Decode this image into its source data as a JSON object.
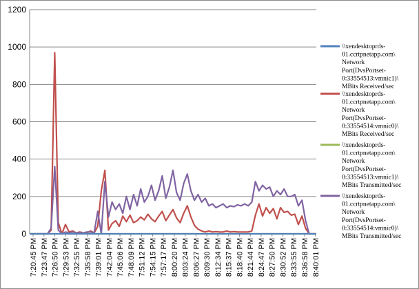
{
  "chart_data": {
    "type": "line",
    "title": "",
    "xlabel": "",
    "ylabel": "",
    "ylim": [
      0,
      1200
    ],
    "yticks": [
      0,
      200,
      400,
      600,
      800,
      1000,
      1200
    ],
    "grid": "horizontal",
    "legend_position": "right",
    "x_tick_labels": [
      "7:20:45 PM",
      "7:23:47 PM",
      "7:26:50 PM",
      "7:29:53 PM",
      "7:32:55 PM",
      "7:35:58 PM",
      "7:39:01 PM",
      "7:42:04 PM",
      "7:45:06 PM",
      "7:48:09 PM",
      "7:51:12 PM",
      "7:54:15 PM",
      "7:57:17 PM",
      "8:00:20 PM",
      "8:03:24 PM",
      "8:06:27 PM",
      "8:09:30 PM",
      "8:12:34 PM",
      "8:15:37 PM",
      "8:18:40 PM",
      "8:21:44 PM",
      "8:24:47 PM",
      "8:27:50 PM",
      "8:30:52 PM",
      "8:33:55 PM",
      "8:36:58 PM",
      "8:40:01 PM"
    ],
    "series": [
      {
        "name": "\\\\xendesktoprds-01.ccrtpnetapp.com\\Network Port(DvsPortset-0:33554513:vmnic1)\\MBits Received/sec",
        "color": "#4f81bd",
        "values": [
          0,
          0,
          0,
          0,
          0,
          0,
          0,
          0,
          0,
          0,
          0,
          0,
          0,
          0,
          0,
          0,
          0,
          0,
          0,
          0,
          0,
          0,
          0,
          0,
          0,
          0,
          0,
          0,
          0,
          0,
          0,
          0,
          0,
          0,
          0,
          0,
          0,
          0,
          0,
          0,
          0,
          0,
          0,
          0,
          0,
          0,
          0,
          0,
          0,
          0,
          0,
          0,
          0,
          0,
          0,
          0,
          0,
          0,
          0,
          0,
          0,
          0,
          0,
          0,
          0,
          0,
          0,
          0,
          0,
          0,
          0,
          0,
          0,
          0,
          0,
          0,
          0,
          0,
          0,
          0,
          0
        ]
      },
      {
        "name": "\\\\xendesktoprds-01.ccrtpnetapp.com\\Network Port(DvsPortset-0:33554514:vmnic0)\\MBits Received/sec",
        "color": "#c0504d",
        "values": [
          0,
          0,
          0,
          0,
          0,
          0,
          20,
          970,
          60,
          0,
          50,
          10,
          15,
          5,
          10,
          5,
          5,
          15,
          5,
          40,
          230,
          340,
          20,
          55,
          70,
          40,
          95,
          65,
          100,
          60,
          70,
          90,
          75,
          105,
          80,
          65,
          95,
          120,
          70,
          100,
          130,
          85,
          60,
          110,
          150,
          90,
          45,
          25,
          15,
          10,
          15,
          10,
          12,
          10,
          10,
          15,
          10,
          12,
          10,
          10,
          10,
          10,
          15,
          100,
          160,
          95,
          140,
          110,
          135,
          80,
          140,
          115,
          120,
          100,
          105,
          50,
          95,
          30,
          0,
          0,
          0
        ]
      },
      {
        "name": "\\\\xendesktoprds-01.ccrtpnetapp.com\\Network Port(DvsPortset-0:33554513:vmnic1)\\MBits Transmitted/sec",
        "color": "#9bbb59",
        "values": [
          0,
          0,
          0,
          0,
          0,
          0,
          0,
          0,
          0,
          0,
          0,
          0,
          0,
          0,
          0,
          0,
          0,
          0,
          0,
          0,
          0,
          0,
          0,
          0,
          0,
          0,
          0,
          0,
          0,
          0,
          0,
          0,
          0,
          0,
          0,
          0,
          0,
          0,
          0,
          0,
          0,
          0,
          0,
          0,
          0,
          0,
          0,
          0,
          0,
          0,
          0,
          0,
          0,
          0,
          0,
          0,
          0,
          0,
          0,
          0,
          0,
          0,
          0,
          0,
          0,
          0,
          0,
          0,
          0,
          0,
          0,
          0,
          0,
          0,
          0,
          0,
          0,
          0,
          0,
          0,
          0
        ]
      },
      {
        "name": "\\\\xendesktoprds-01.ccrtpnetapp.com\\Network Port(DvsPortset-0:33554514:vmnic0)\\MBits Transmitted/sec",
        "color": "#8064a2",
        "values": [
          0,
          0,
          0,
          0,
          0,
          0,
          30,
          360,
          20,
          0,
          10,
          5,
          10,
          5,
          5,
          5,
          10,
          10,
          5,
          120,
          0,
          280,
          90,
          170,
          130,
          160,
          110,
          200,
          130,
          210,
          150,
          240,
          170,
          200,
          260,
          180,
          230,
          310,
          190,
          250,
          340,
          220,
          180,
          270,
          320,
          230,
          180,
          210,
          170,
          190,
          150,
          160,
          140,
          150,
          160,
          140,
          150,
          145,
          155,
          150,
          160,
          150,
          170,
          280,
          230,
          260,
          240,
          250,
          200,
          230,
          210,
          240,
          200,
          200,
          210,
          150,
          180,
          70,
          0,
          0,
          0
        ]
      }
    ]
  }
}
